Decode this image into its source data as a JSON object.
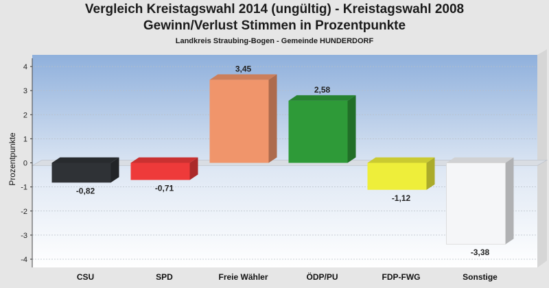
{
  "chart_data": {
    "type": "bar",
    "title": "Vergleich Kreistagswahl 2014 (ungültig) - Kreistagswahl 2008",
    "subtitle": "Gewinn/Verlust Stimmen in Prozentpunkte",
    "caption": "Landkreis Straubing-Bogen - Gemeinde HUNDERDORF",
    "ylabel": "Prozentpunkte",
    "xlabel": "",
    "ylim": [
      -4,
      4
    ],
    "yticks": [
      4,
      3,
      2,
      1,
      0,
      -1,
      -2,
      -3,
      -4
    ],
    "grid": true,
    "categories": [
      "CSU",
      "SPD",
      "Freie Wähler",
      "ÖDP/PU",
      "FDP-FWG",
      "Sonstige"
    ],
    "values": [
      -0.82,
      -0.71,
      3.45,
      2.58,
      -1.12,
      -3.38
    ],
    "value_labels": [
      "-0,82",
      "-0,71",
      "3,45",
      "2,58",
      "-1,12",
      "-3,38"
    ],
    "colors": [
      "#2f3236",
      "#ee3a3a",
      "#f0956b",
      "#2e9a38",
      "#eeee3a",
      "#f5f6f8"
    ]
  }
}
